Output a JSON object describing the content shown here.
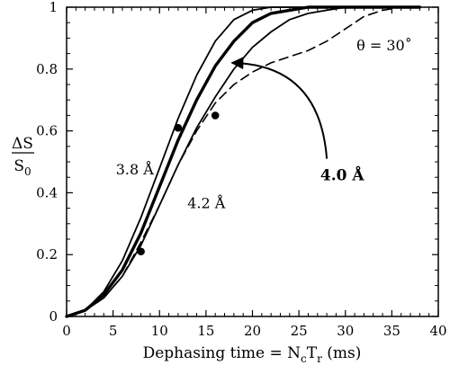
{
  "chart_data": {
    "type": "line",
    "x_range": [
      0,
      40
    ],
    "y_range": [
      0,
      1
    ],
    "x_ticks": [
      "0",
      "5",
      "10",
      "15",
      "20",
      "25",
      "30",
      "35",
      "40"
    ],
    "y_ticks": [
      "0",
      "0.2",
      "0.4",
      "0.6",
      "0.8",
      "1"
    ],
    "xlabel": {
      "prefix": "Dephasing time = N",
      "sub1": "c",
      "mid": "T",
      "sub2": "r",
      "suffix": " (ms)"
    },
    "ylabel": {
      "numerator": "ΔS",
      "denominator_main": "S",
      "denominator_sub": "0"
    },
    "series": [
      {
        "name": "3.8 Å",
        "style": "thin",
        "x": [
          0,
          2,
          4,
          6,
          8,
          10,
          12,
          14,
          16,
          18,
          20,
          22,
          24,
          26,
          28,
          30,
          32,
          34,
          36,
          38
        ],
        "y": [
          0,
          0.02,
          0.08,
          0.18,
          0.32,
          0.48,
          0.64,
          0.78,
          0.89,
          0.96,
          0.99,
          1.0,
          1.0,
          1.0,
          1.0,
          1.0,
          1.0,
          1.0,
          1.0,
          1.0
        ]
      },
      {
        "name": "4.0 Å",
        "style": "bold",
        "x": [
          0,
          2,
          4,
          6,
          8,
          10,
          12,
          14,
          16,
          18,
          20,
          22,
          24,
          26,
          28,
          30,
          32,
          34,
          36,
          38
        ],
        "y": [
          0,
          0.02,
          0.07,
          0.15,
          0.27,
          0.42,
          0.57,
          0.7,
          0.81,
          0.89,
          0.95,
          0.98,
          0.99,
          1.0,
          1.0,
          1.0,
          1.0,
          1.0,
          1.0,
          1.0
        ]
      },
      {
        "name": "4.2 Å",
        "style": "thin",
        "x": [
          0,
          2,
          4,
          6,
          8,
          10,
          12,
          14,
          16,
          18,
          20,
          22,
          24,
          26,
          28,
          30,
          32,
          34,
          36,
          38
        ],
        "y": [
          0,
          0.02,
          0.06,
          0.13,
          0.23,
          0.36,
          0.49,
          0.61,
          0.71,
          0.8,
          0.87,
          0.92,
          0.96,
          0.98,
          0.99,
          1.0,
          1.0,
          1.0,
          1.0,
          1.0
        ]
      },
      {
        "name": "θ = 30˚",
        "style": "dashed",
        "x": [
          0,
          2,
          4,
          6,
          8,
          10,
          12,
          14,
          16,
          18,
          20,
          22,
          24,
          26,
          28,
          30,
          32,
          34,
          36,
          38
        ],
        "y": [
          0,
          0.02,
          0.06,
          0.13,
          0.24,
          0.36,
          0.49,
          0.6,
          0.69,
          0.75,
          0.79,
          0.82,
          0.84,
          0.86,
          0.89,
          0.93,
          0.97,
          0.99,
          1.0,
          1.0
        ]
      }
    ],
    "points": [
      {
        "x": 8,
        "y": 0.21
      },
      {
        "x": 12,
        "y": 0.61
      },
      {
        "x": 16,
        "y": 0.65
      }
    ],
    "annotations": [
      {
        "text": "3.8 Å",
        "x": 5.3,
        "y": 0.46,
        "bold": false
      },
      {
        "text": "4.2 Å",
        "x": 13.0,
        "y": 0.35,
        "bold": false
      },
      {
        "text": "4.0 Å",
        "x": 27.3,
        "y": 0.44,
        "bold": true
      },
      {
        "text": "θ = 30˚",
        "x": 31.2,
        "y": 0.86,
        "bold": false
      }
    ],
    "arrow": {
      "from": [
        28.0,
        0.51
      ],
      "to": [
        17.8,
        0.82
      ]
    },
    "grid": false,
    "legend": "none"
  }
}
